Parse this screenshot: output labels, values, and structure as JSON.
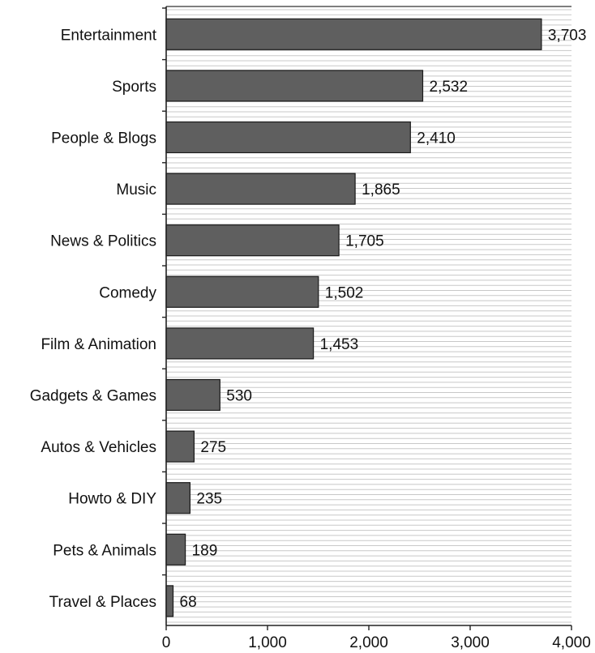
{
  "chart_data": {
    "type": "bar",
    "orientation": "horizontal",
    "categories": [
      "Entertainment",
      "Sports",
      "People & Blogs",
      "Music",
      "News & Politics",
      "Comedy",
      "Film & Animation",
      "Gadgets & Games",
      "Autos & Vehicles",
      "Howto & DIY",
      "Pets & Animals",
      "Travel & Places"
    ],
    "values": [
      3703,
      2532,
      2410,
      1865,
      1705,
      1502,
      1453,
      530,
      275,
      235,
      189,
      68
    ],
    "value_labels": [
      "3,703",
      "2,532",
      "2,410",
      "1,865",
      "1,705",
      "1,502",
      "1,453",
      "530",
      "275",
      "235",
      "189",
      "68"
    ],
    "xlim": [
      0,
      4000
    ],
    "x_ticks": [
      0,
      1000,
      2000,
      3000,
      4000
    ],
    "x_tick_labels": [
      "0",
      "1,000",
      "2,000",
      "3,000",
      "4,000"
    ],
    "title": "",
    "xlabel": "",
    "ylabel": "",
    "grid": "horizontal-lines",
    "legend": "none",
    "bar_color": "#5f5f5f",
    "bar_edge_color": "#1a1a1a",
    "grid_color": "#c8c8c8"
  }
}
